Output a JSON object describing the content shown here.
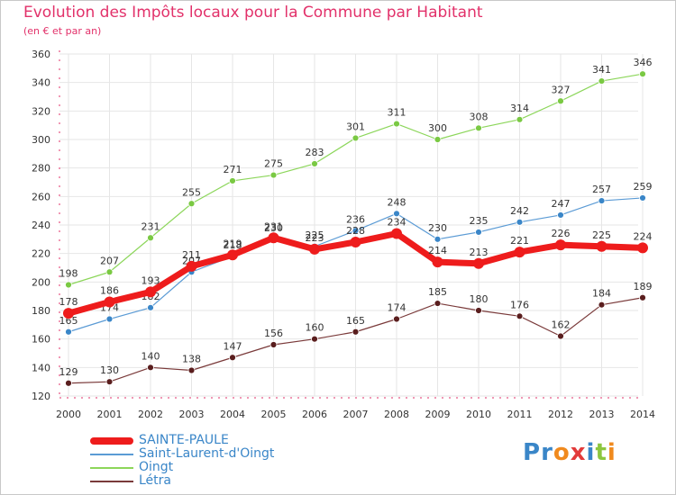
{
  "header": {
    "title": "Evolution des Impôts locaux pour la Commune par Habitant",
    "subtitle": "(en € et par an)"
  },
  "logo": {
    "text": "Proxiti",
    "letters": [
      "P",
      "r",
      "o",
      "x",
      "i",
      "t",
      "i"
    ],
    "colors": [
      "#3a86c8",
      "#3a86c8",
      "#f08a1e",
      "#e23a3a",
      "#3a86c8",
      "#8cc63f",
      "#f08a1e"
    ]
  },
  "colors": {
    "title": "#e2316a",
    "axis": "#e2316a",
    "grid": "#e6e6e6"
  },
  "chart_data": {
    "type": "line",
    "title": "Evolution des Impôts locaux pour la Commune par Habitant",
    "subtitle": "(en € et par an)",
    "xlabel": "",
    "ylabel": "",
    "ylim": [
      120,
      360
    ],
    "yticks": [
      120,
      140,
      160,
      180,
      200,
      220,
      240,
      260,
      280,
      300,
      320,
      340,
      360
    ],
    "grid": true,
    "legend_position": "bottom-left",
    "x": [
      "2000",
      "2001",
      "2002",
      "2003",
      "2004",
      "2005",
      "2006",
      "2007",
      "2008",
      "2009",
      "2010",
      "2011",
      "2012",
      "2013",
      "2014"
    ],
    "series": [
      {
        "name": "Oingt",
        "color": "#8cd65a",
        "marker": "#7ac943",
        "width": 1.2,
        "radius": 3.5,
        "values": [
          198,
          207,
          231,
          255,
          271,
          275,
          283,
          301,
          311,
          300,
          308,
          314,
          327,
          341,
          346
        ]
      },
      {
        "name": "Saint-Laurent-d'Oingt",
        "color": "#5b9bd5",
        "marker": "#3a86c8",
        "width": 1.2,
        "radius": 3.5,
        "values": [
          165,
          174,
          182,
          207,
          218,
          230,
          225,
          236,
          248,
          230,
          235,
          242,
          247,
          257,
          259
        ]
      },
      {
        "name": "Létra",
        "color": "#7a3a3a",
        "marker": "#5a1e1e",
        "width": 1.2,
        "radius": 3.5,
        "values": [
          129,
          130,
          140,
          138,
          147,
          156,
          160,
          165,
          174,
          185,
          180,
          176,
          162,
          184,
          189
        ]
      },
      {
        "name": "SAINTE-PAULE",
        "color": "#ee1c1c",
        "marker": "#ee1c1c",
        "width": 7,
        "radius": 6,
        "values": [
          178,
          186,
          193,
          211,
          219,
          231,
          223,
          228,
          234,
          214,
          213,
          221,
          226,
          225,
          224
        ]
      }
    ],
    "legend": [
      {
        "name": "SAINTE-PAULE",
        "color": "#ee1c1c",
        "thickness": 8
      },
      {
        "name": "Saint-Laurent-d'Oingt",
        "color": "#5b9bd5",
        "thickness": 1.5
      },
      {
        "name": "Oingt",
        "color": "#8cd65a",
        "thickness": 1.5
      },
      {
        "name": "Létra",
        "color": "#7a3a3a",
        "thickness": 1.5
      }
    ]
  }
}
